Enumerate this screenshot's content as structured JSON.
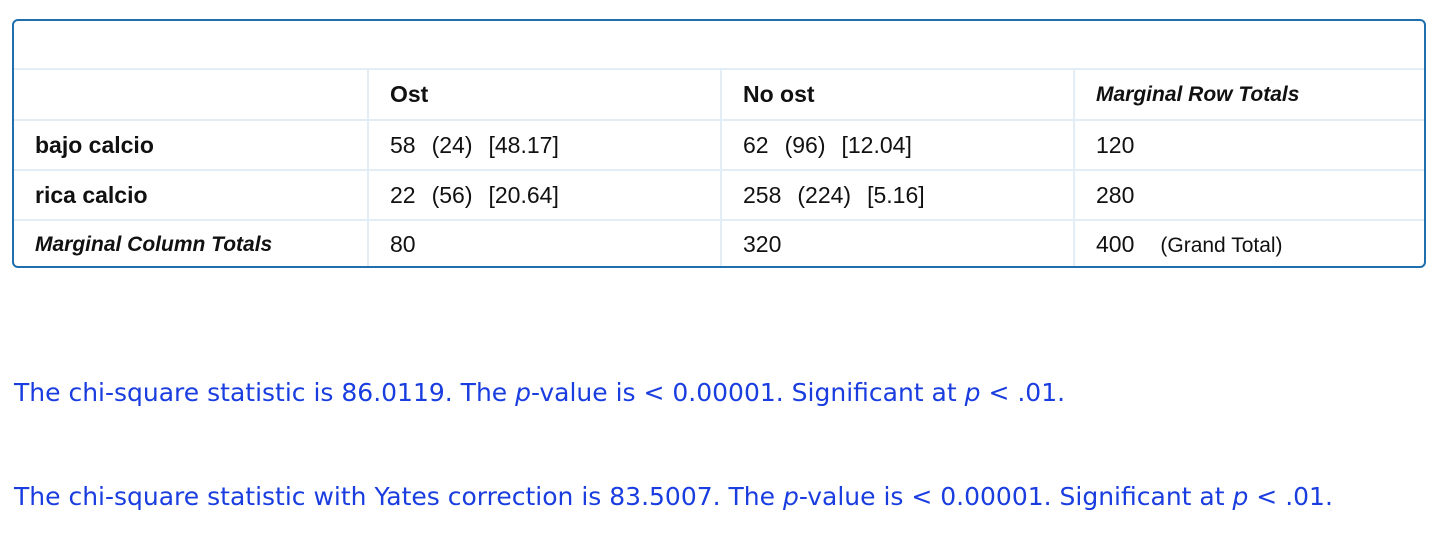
{
  "table": {
    "header": {
      "corner": "",
      "col1": "Ost",
      "col2": "No ost",
      "col3": "Marginal Row Totals"
    },
    "rows": [
      {
        "label": "bajo calcio",
        "c1": {
          "observed": "58",
          "expected": "(24)",
          "chi": "[48.17]"
        },
        "c2": {
          "observed": "62",
          "expected": "(96)",
          "chi": "[12.04]"
        },
        "total": "120"
      },
      {
        "label": "rica calcio",
        "c1": {
          "observed": "22",
          "expected": "(56)",
          "chi": "[20.64]"
        },
        "c2": {
          "observed": "258",
          "expected": "(224)",
          "chi": "[5.16]"
        },
        "total": "280"
      }
    ],
    "totals": {
      "label": "Marginal Column Totals",
      "c1": "80",
      "c2": "320",
      "grand": "400",
      "grand_label": "(Grand Total)"
    }
  },
  "results": {
    "line1": {
      "a": "The chi-square statistic is 86.0119. The ",
      "p1": "p",
      "b": "-value is < 0.00001. Significant at ",
      "p2": "p",
      "c": " < .01."
    },
    "line2": {
      "a": "The chi-square statistic with Yates correction is 83.5007. The ",
      "p1": "p",
      "b": "-value is < 0.00001. Significant at ",
      "p2": "p",
      "c": " < .01."
    }
  },
  "colors": {
    "border": "#1f6fae",
    "grid": "#e3edf5",
    "result_text": "#1a3de0"
  }
}
